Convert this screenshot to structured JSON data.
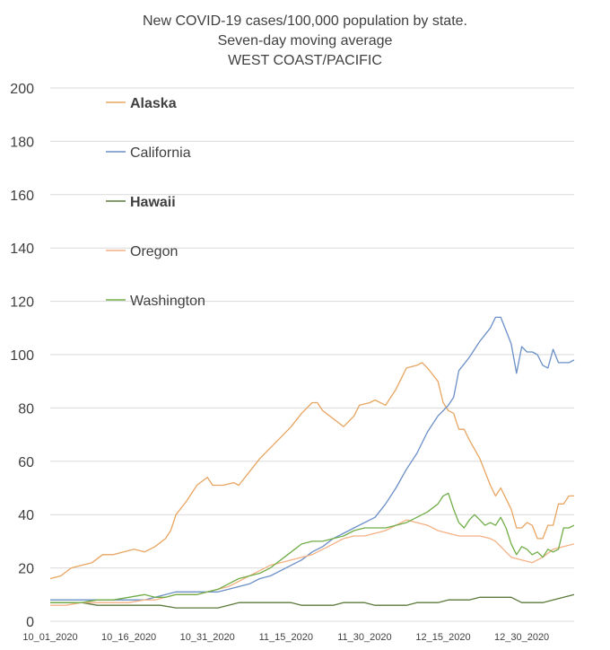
{
  "chart_data": {
    "type": "line",
    "title": [
      "New COVID-19 cases/100,000 population by state.",
      "Seven-day moving average",
      "WEST COAST/PACIFIC"
    ],
    "xlabel": "",
    "ylabel": "",
    "ylim": [
      0,
      200
    ],
    "yticks": [
      0,
      20,
      40,
      60,
      80,
      100,
      120,
      140,
      160,
      180,
      200
    ],
    "x_tick_labels": [
      "10_01_2020",
      "10_16_2020",
      "10_31_2020",
      "11_15_2020",
      "11_30_2020",
      "12_15_2020",
      "12_30_2020"
    ],
    "x_tick_days": [
      0,
      15,
      30,
      45,
      60,
      75,
      90
    ],
    "x_range_days": [
      0,
      97
    ],
    "grid": true,
    "legend_position": "inside-top-left",
    "series": [
      {
        "name": "Alaska",
        "bold": true,
        "color": "#e8a561",
        "points": [
          [
            0,
            16
          ],
          [
            2,
            17
          ],
          [
            4,
            20
          ],
          [
            6,
            21
          ],
          [
            8,
            22
          ],
          [
            10,
            25
          ],
          [
            12,
            25
          ],
          [
            14,
            26
          ],
          [
            16,
            27
          ],
          [
            18,
            26
          ],
          [
            20,
            28
          ],
          [
            22,
            31
          ],
          [
            23,
            34
          ],
          [
            24,
            40
          ],
          [
            26,
            45
          ],
          [
            28,
            51
          ],
          [
            30,
            54
          ],
          [
            31,
            51
          ],
          [
            33,
            51
          ],
          [
            35,
            52
          ],
          [
            36,
            51
          ],
          [
            38,
            56
          ],
          [
            40,
            61
          ],
          [
            42,
            65
          ],
          [
            44,
            69
          ],
          [
            46,
            73
          ],
          [
            48,
            78
          ],
          [
            50,
            82
          ],
          [
            51,
            82
          ],
          [
            52,
            79
          ],
          [
            54,
            76
          ],
          [
            56,
            73
          ],
          [
            58,
            77
          ],
          [
            59,
            81
          ],
          [
            61,
            82
          ],
          [
            62,
            83
          ],
          [
            64,
            81
          ],
          [
            66,
            87
          ],
          [
            68,
            95
          ],
          [
            70,
            96
          ],
          [
            71,
            97
          ],
          [
            72,
            95
          ],
          [
            74,
            90
          ],
          [
            75,
            82
          ],
          [
            76,
            79
          ],
          [
            77,
            78
          ],
          [
            78,
            72
          ],
          [
            79,
            72
          ],
          [
            80,
            68
          ],
          [
            82,
            61
          ],
          [
            84,
            51
          ],
          [
            85,
            47
          ],
          [
            86,
            50
          ],
          [
            87,
            46
          ],
          [
            88,
            42
          ],
          [
            89,
            35
          ],
          [
            90,
            35
          ],
          [
            91,
            37
          ],
          [
            92,
            36
          ],
          [
            93,
            31
          ],
          [
            94,
            31
          ],
          [
            95,
            36
          ],
          [
            96,
            36
          ],
          [
            97,
            44
          ],
          [
            98,
            44
          ],
          [
            99,
            47
          ],
          [
            100,
            47
          ]
        ]
      },
      {
        "name": "California",
        "bold": false,
        "color": "#6a8fc7",
        "points": [
          [
            0,
            8
          ],
          [
            3,
            8
          ],
          [
            6,
            8
          ],
          [
            9,
            8
          ],
          [
            12,
            8
          ],
          [
            15,
            8
          ],
          [
            18,
            8
          ],
          [
            20,
            9
          ],
          [
            22,
            10
          ],
          [
            24,
            11
          ],
          [
            26,
            11
          ],
          [
            28,
            11
          ],
          [
            30,
            11
          ],
          [
            32,
            11
          ],
          [
            34,
            12
          ],
          [
            36,
            13
          ],
          [
            38,
            14
          ],
          [
            40,
            16
          ],
          [
            42,
            17
          ],
          [
            44,
            19
          ],
          [
            46,
            21
          ],
          [
            48,
            23
          ],
          [
            50,
            26
          ],
          [
            52,
            28
          ],
          [
            54,
            31
          ],
          [
            56,
            33
          ],
          [
            58,
            35
          ],
          [
            60,
            37
          ],
          [
            62,
            39
          ],
          [
            64,
            44
          ],
          [
            66,
            50
          ],
          [
            68,
            57
          ],
          [
            70,
            63
          ],
          [
            72,
            71
          ],
          [
            74,
            77
          ],
          [
            75,
            79
          ],
          [
            76,
            81
          ],
          [
            77,
            84
          ],
          [
            78,
            94
          ],
          [
            80,
            99
          ],
          [
            82,
            105
          ],
          [
            84,
            110
          ],
          [
            85,
            114
          ],
          [
            86,
            114
          ],
          [
            87,
            109
          ],
          [
            88,
            104
          ],
          [
            89,
            93
          ],
          [
            90,
            103
          ],
          [
            91,
            101
          ],
          [
            92,
            101
          ],
          [
            93,
            100
          ],
          [
            94,
            96
          ],
          [
            95,
            95
          ],
          [
            96,
            102
          ],
          [
            97,
            97
          ],
          [
            98,
            97
          ],
          [
            99,
            97
          ],
          [
            100,
            98
          ]
        ]
      },
      {
        "name": "Hawaii",
        "bold": true,
        "color": "#5b7a3b",
        "points": [
          [
            0,
            7
          ],
          [
            3,
            7
          ],
          [
            6,
            7
          ],
          [
            9,
            6
          ],
          [
            12,
            6
          ],
          [
            15,
            6
          ],
          [
            18,
            6
          ],
          [
            21,
            6
          ],
          [
            24,
            5
          ],
          [
            27,
            5
          ],
          [
            30,
            5
          ],
          [
            32,
            5
          ],
          [
            34,
            6
          ],
          [
            36,
            7
          ],
          [
            38,
            7
          ],
          [
            40,
            7
          ],
          [
            42,
            7
          ],
          [
            44,
            7
          ],
          [
            46,
            7
          ],
          [
            48,
            6
          ],
          [
            50,
            6
          ],
          [
            52,
            6
          ],
          [
            54,
            6
          ],
          [
            56,
            7
          ],
          [
            58,
            7
          ],
          [
            60,
            7
          ],
          [
            62,
            6
          ],
          [
            64,
            6
          ],
          [
            66,
            6
          ],
          [
            68,
            6
          ],
          [
            70,
            7
          ],
          [
            72,
            7
          ],
          [
            74,
            7
          ],
          [
            76,
            8
          ],
          [
            78,
            8
          ],
          [
            80,
            8
          ],
          [
            82,
            9
          ],
          [
            84,
            9
          ],
          [
            86,
            9
          ],
          [
            88,
            9
          ],
          [
            90,
            7
          ],
          [
            92,
            7
          ],
          [
            94,
            7
          ],
          [
            96,
            8
          ],
          [
            98,
            9
          ],
          [
            100,
            10
          ]
        ]
      },
      {
        "name": "Oregon",
        "bold": false,
        "color": "#f4b183",
        "points": [
          [
            0,
            6
          ],
          [
            3,
            6
          ],
          [
            6,
            7
          ],
          [
            9,
            7
          ],
          [
            12,
            7
          ],
          [
            15,
            7
          ],
          [
            18,
            8
          ],
          [
            20,
            8
          ],
          [
            22,
            9
          ],
          [
            24,
            10
          ],
          [
            26,
            10
          ],
          [
            28,
            10
          ],
          [
            30,
            11
          ],
          [
            32,
            12
          ],
          [
            34,
            13
          ],
          [
            36,
            15
          ],
          [
            38,
            17
          ],
          [
            40,
            19
          ],
          [
            42,
            21
          ],
          [
            44,
            22
          ],
          [
            46,
            23
          ],
          [
            48,
            24
          ],
          [
            50,
            25
          ],
          [
            52,
            27
          ],
          [
            54,
            29
          ],
          [
            56,
            31
          ],
          [
            58,
            32
          ],
          [
            60,
            32
          ],
          [
            62,
            33
          ],
          [
            64,
            34
          ],
          [
            66,
            36
          ],
          [
            68,
            38
          ],
          [
            70,
            37
          ],
          [
            72,
            36
          ],
          [
            74,
            34
          ],
          [
            76,
            33
          ],
          [
            78,
            32
          ],
          [
            80,
            32
          ],
          [
            82,
            32
          ],
          [
            84,
            31
          ],
          [
            85,
            30
          ],
          [
            86,
            28
          ],
          [
            88,
            24
          ],
          [
            90,
            23
          ],
          [
            92,
            22
          ],
          [
            94,
            24
          ],
          [
            96,
            27
          ],
          [
            98,
            28
          ],
          [
            100,
            29
          ]
        ]
      },
      {
        "name": "Washington",
        "bold": false,
        "color": "#70ad47",
        "points": [
          [
            0,
            7
          ],
          [
            3,
            7
          ],
          [
            6,
            7
          ],
          [
            9,
            8
          ],
          [
            12,
            8
          ],
          [
            15,
            9
          ],
          [
            18,
            10
          ],
          [
            20,
            9
          ],
          [
            22,
            9
          ],
          [
            24,
            10
          ],
          [
            26,
            10
          ],
          [
            28,
            10
          ],
          [
            30,
            11
          ],
          [
            32,
            12
          ],
          [
            34,
            14
          ],
          [
            36,
            16
          ],
          [
            38,
            17
          ],
          [
            40,
            18
          ],
          [
            42,
            20
          ],
          [
            44,
            23
          ],
          [
            46,
            26
          ],
          [
            48,
            29
          ],
          [
            50,
            30
          ],
          [
            52,
            30
          ],
          [
            54,
            31
          ],
          [
            56,
            32
          ],
          [
            58,
            34
          ],
          [
            60,
            35
          ],
          [
            62,
            35
          ],
          [
            64,
            35
          ],
          [
            66,
            36
          ],
          [
            68,
            37
          ],
          [
            70,
            39
          ],
          [
            72,
            41
          ],
          [
            74,
            44
          ],
          [
            75,
            47
          ],
          [
            76,
            48
          ],
          [
            77,
            42
          ],
          [
            78,
            37
          ],
          [
            79,
            35
          ],
          [
            80,
            38
          ],
          [
            81,
            40
          ],
          [
            82,
            38
          ],
          [
            83,
            36
          ],
          [
            84,
            37
          ],
          [
            85,
            36
          ],
          [
            86,
            39
          ],
          [
            87,
            35
          ],
          [
            88,
            29
          ],
          [
            89,
            25
          ],
          [
            90,
            28
          ],
          [
            91,
            27
          ],
          [
            92,
            25
          ],
          [
            93,
            26
          ],
          [
            94,
            24
          ],
          [
            95,
            27
          ],
          [
            96,
            26
          ],
          [
            97,
            27
          ],
          [
            98,
            35
          ],
          [
            99,
            35
          ],
          [
            100,
            36
          ]
        ]
      }
    ]
  }
}
